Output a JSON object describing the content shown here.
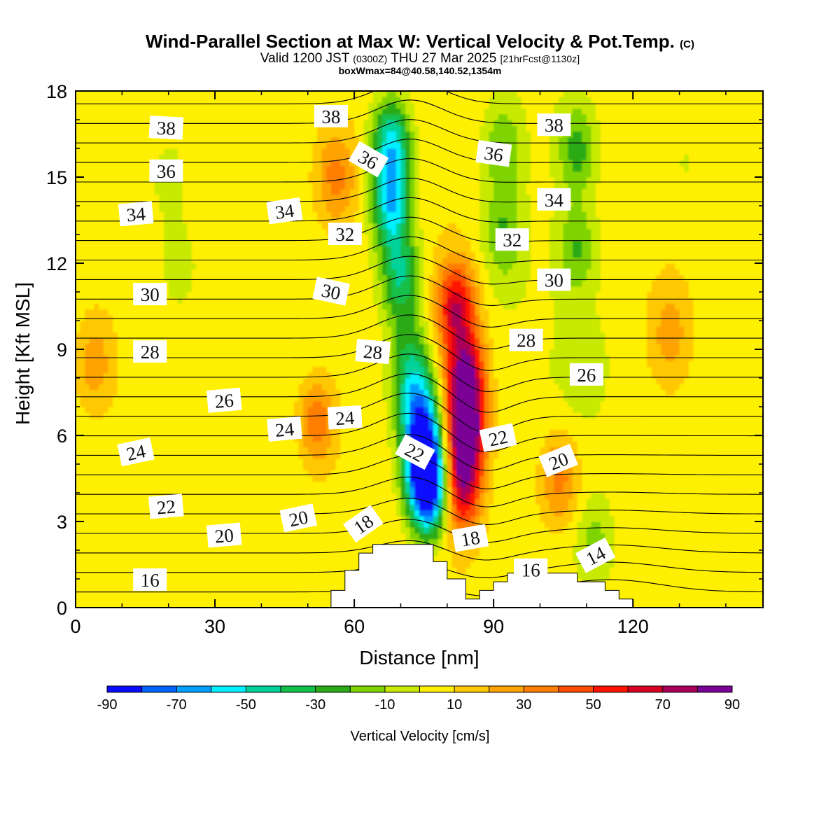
{
  "header": {
    "title_main": "Wind-Parallel Section at Max W: Vertical Velocity & Pot.Temp.",
    "title_tag": "(C)",
    "valid_prefix": "Valid 1200 JST",
    "valid_utc": "(0300Z)",
    "valid_date": "THU 27 Mar 2025",
    "forecast_tag": "[21hrFcst@1130z]",
    "boxwmax": "boxWmax=84@40.58,140.52,1354m"
  },
  "chart_data": {
    "type": "heatmap",
    "xlabel": "Distance [nm]",
    "ylabel": "Height [Kft MSL]",
    "xlim": [
      0,
      148
    ],
    "ylim": [
      0,
      18
    ],
    "x_ticks": [
      0,
      30,
      60,
      90,
      120
    ],
    "y_ticks": [
      0,
      3,
      6,
      9,
      12,
      15,
      18
    ],
    "colorbar": {
      "title": "Vertical Velocity [cm/s]",
      "levels": [
        -90,
        -80,
        -70,
        -60,
        -50,
        -40,
        -30,
        -20,
        -10,
        0,
        10,
        20,
        30,
        40,
        50,
        60,
        70,
        80,
        90
      ],
      "labels": [
        "-90",
        "-70",
        "-50",
        "-30",
        "-10",
        "10",
        "30",
        "50",
        "70",
        "90"
      ],
      "colors": [
        "#0a0aff",
        "#0064ff",
        "#00a0ff",
        "#00f0ff",
        "#00d29a",
        "#12c04a",
        "#2aab17",
        "#7fd400",
        "#c8ea00",
        "#ffef00",
        "#ffc800",
        "#ffa300",
        "#ff7e00",
        "#ff4d00",
        "#ff1200",
        "#d80024",
        "#a8005a",
        "#7a0096"
      ]
    },
    "terrain": [
      [
        0,
        0
      ],
      [
        55,
        0
      ],
      [
        55,
        0.6
      ],
      [
        58,
        0.6
      ],
      [
        58,
        1.3
      ],
      [
        61,
        1.3
      ],
      [
        61,
        1.9
      ],
      [
        64,
        1.9
      ],
      [
        64,
        2.2
      ],
      [
        77,
        2.2
      ],
      [
        77,
        1.6
      ],
      [
        80,
        1.6
      ],
      [
        80,
        1.0
      ],
      [
        84,
        1.0
      ],
      [
        84,
        0.3
      ],
      [
        87,
        0.3
      ],
      [
        87,
        0.6
      ],
      [
        90,
        0.6
      ],
      [
        90,
        0.9
      ],
      [
        93,
        0.9
      ],
      [
        93,
        1.2
      ],
      [
        108,
        1.2
      ],
      [
        108,
        0.9
      ],
      [
        114,
        0.9
      ],
      [
        114,
        0.6
      ],
      [
        117,
        0.6
      ],
      [
        117,
        0.3
      ],
      [
        120,
        0.3
      ],
      [
        120,
        0
      ],
      [
        148,
        0
      ]
    ],
    "w_features": [
      {
        "x": 68,
        "y": 16.2,
        "w": -60
      },
      {
        "x": 68,
        "y": 14.0,
        "w": -60
      },
      {
        "x": 70,
        "y": 11.5,
        "w": -45
      },
      {
        "x": 72,
        "y": 8.5,
        "w": -35
      },
      {
        "x": 74,
        "y": 6.8,
        "w": -55
      },
      {
        "x": 75,
        "y": 5.2,
        "w": -75
      },
      {
        "x": 76,
        "y": 4.0,
        "w": -85
      },
      {
        "x": 82,
        "y": 10.5,
        "w": 62
      },
      {
        "x": 84,
        "y": 8.0,
        "w": 75
      },
      {
        "x": 84,
        "y": 6.0,
        "w": 85
      },
      {
        "x": 83,
        "y": 4.0,
        "w": 55
      },
      {
        "x": 92,
        "y": 13.0,
        "w": -25
      },
      {
        "x": 92,
        "y": 16.0,
        "w": -25
      },
      {
        "x": 108,
        "y": 16.0,
        "w": -30
      },
      {
        "x": 108,
        "y": 12.5,
        "w": -25
      },
      {
        "x": 110,
        "y": 8.5,
        "w": -12
      },
      {
        "x": 20,
        "y": 15.0,
        "w": -15
      },
      {
        "x": 22,
        "y": 12.0,
        "w": -12
      },
      {
        "x": 52,
        "y": 6.5,
        "w": 35
      },
      {
        "x": 56,
        "y": 15.0,
        "w": 28
      },
      {
        "x": 104,
        "y": 4.5,
        "w": 32
      },
      {
        "x": 4,
        "y": 8.5,
        "w": 22
      },
      {
        "x": 128,
        "y": 9.5,
        "w": 20
      },
      {
        "x": 131,
        "y": 15.5,
        "w": -10
      },
      {
        "x": 112,
        "y": 2.2,
        "w": -20
      }
    ],
    "theta_contours": {
      "interval": 1,
      "labels": [
        {
          "text": "38",
          "x": 19.5,
          "y": 16.7,
          "angle": 3
        },
        {
          "text": "38",
          "x": 55,
          "y": 17.1,
          "angle": 0
        },
        {
          "text": "38",
          "x": 103,
          "y": 16.8,
          "angle": 0
        },
        {
          "text": "36",
          "x": 19.5,
          "y": 15.2,
          "angle": 0
        },
        {
          "text": "36",
          "x": 63,
          "y": 15.6,
          "angle": 30
        },
        {
          "text": "36",
          "x": 90,
          "y": 15.8,
          "angle": 8
        },
        {
          "text": "34",
          "x": 13,
          "y": 13.7,
          "angle": -5
        },
        {
          "text": "34",
          "x": 45,
          "y": 13.8,
          "angle": -8
        },
        {
          "text": "34",
          "x": 103,
          "y": 14.2,
          "angle": 0
        },
        {
          "text": "32",
          "x": 58,
          "y": 13.0,
          "angle": 0
        },
        {
          "text": "32",
          "x": 94,
          "y": 12.8,
          "angle": 0
        },
        {
          "text": "30",
          "x": 16,
          "y": 10.9,
          "angle": 0
        },
        {
          "text": "30",
          "x": 55,
          "y": 11.0,
          "angle": 12
        },
        {
          "text": "30",
          "x": 103,
          "y": 11.4,
          "angle": 0
        },
        {
          "text": "28",
          "x": 16,
          "y": 8.9,
          "angle": 0
        },
        {
          "text": "28",
          "x": 64,
          "y": 8.9,
          "angle": 5
        },
        {
          "text": "28",
          "x": 97,
          "y": 9.3,
          "angle": 0
        },
        {
          "text": "26",
          "x": 32,
          "y": 7.2,
          "angle": -5
        },
        {
          "text": "26",
          "x": 110,
          "y": 8.1,
          "angle": 0
        },
        {
          "text": "24",
          "x": 13,
          "y": 5.4,
          "angle": -12
        },
        {
          "text": "24",
          "x": 45,
          "y": 6.2,
          "angle": -5
        },
        {
          "text": "24",
          "x": 58,
          "y": 6.6,
          "angle": -3
        },
        {
          "text": "22",
          "x": 19.5,
          "y": 3.5,
          "angle": -5
        },
        {
          "text": "22",
          "x": 73,
          "y": 5.4,
          "angle": 28
        },
        {
          "text": "22",
          "x": 91,
          "y": 5.9,
          "angle": -12
        },
        {
          "text": "20",
          "x": 32,
          "y": 2.5,
          "angle": -5
        },
        {
          "text": "20",
          "x": 48,
          "y": 3.1,
          "angle": -12
        },
        {
          "text": "20",
          "x": 104,
          "y": 5.1,
          "angle": -22
        },
        {
          "text": "18",
          "x": 62,
          "y": 2.9,
          "angle": -35
        },
        {
          "text": "18",
          "x": 85,
          "y": 2.4,
          "angle": -10
        },
        {
          "text": "16",
          "x": 16,
          "y": 0.95,
          "angle": 0
        },
        {
          "text": "16",
          "x": 98,
          "y": 1.3,
          "angle": 0
        },
        {
          "text": "14",
          "x": 112,
          "y": 1.8,
          "angle": -28
        }
      ]
    }
  }
}
